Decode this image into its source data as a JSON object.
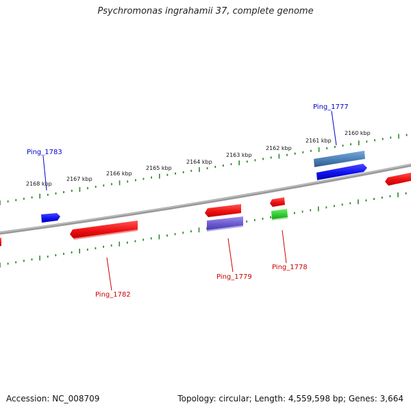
{
  "title": "Psychromonas ingrahamii 37, complete genome",
  "footer": {
    "accession": "Accession: NC_008709",
    "topology": "Topology: circular; Length: 4,559,598 bp; Genes: 3,664"
  },
  "scale": {
    "tick_labels": [
      "2168 kbp",
      "2167 kbp",
      "2166 kbp",
      "2165 kbp",
      "2164 kbp",
      "2163 kbp",
      "2162 kbp",
      "2161 kbp",
      "2160 kbp"
    ]
  },
  "colors": {
    "backbone": "#808080",
    "tick": "#2a8a2a",
    "red": "#ee1111",
    "blue": "#1111ee",
    "steel": "#4a7fb5",
    "purple": "#6a5acd",
    "green": "#33cc33",
    "label_blue": "#0000cc",
    "label_red": "#cc0000"
  },
  "genes": {
    "ping_1777": "Ping_1777",
    "ping_1783": "Ping_1783",
    "ping_1782": "Ping_1782",
    "ping_1779": "Ping_1779",
    "ping_1778": "Ping_1778"
  }
}
